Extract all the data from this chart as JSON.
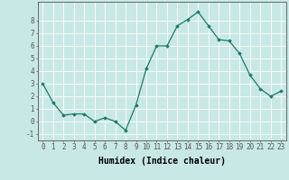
{
  "x": [
    0,
    1,
    2,
    3,
    4,
    5,
    6,
    7,
    8,
    9,
    10,
    11,
    12,
    13,
    14,
    15,
    16,
    17,
    18,
    19,
    20,
    21,
    22,
    23
  ],
  "y": [
    3.0,
    1.5,
    0.5,
    0.6,
    0.6,
    0.0,
    0.3,
    0.0,
    -0.7,
    1.3,
    4.2,
    6.0,
    6.0,
    7.6,
    8.1,
    8.7,
    7.6,
    6.5,
    6.4,
    5.4,
    3.7,
    2.6,
    2.0,
    2.4
  ],
  "xlabel": "Humidex (Indice chaleur)",
  "ylim": [
    -1.5,
    9.5
  ],
  "xlim": [
    -0.5,
    23.5
  ],
  "yticks": [
    -1,
    0,
    1,
    2,
    3,
    4,
    5,
    6,
    7,
    8
  ],
  "xticks": [
    0,
    1,
    2,
    3,
    4,
    5,
    6,
    7,
    8,
    9,
    10,
    11,
    12,
    13,
    14,
    15,
    16,
    17,
    18,
    19,
    20,
    21,
    22,
    23
  ],
  "line_color": "#1a7a6a",
  "marker": "D",
  "marker_size": 1.8,
  "bg_color": "#c8e8e5",
  "grid_color": "#ffffff",
  "axis_color": "#555555",
  "xlabel_fontsize": 7,
  "tick_fontsize": 5.5
}
